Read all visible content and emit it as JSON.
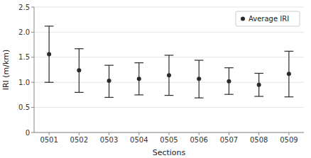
{
  "chart_data": {
    "type": "errorbar",
    "categories": [
      "0501",
      "0502",
      "0503",
      "0504",
      "0505",
      "0506",
      "0507",
      "0508",
      "0509"
    ],
    "series": [
      {
        "name": "Average IRI",
        "color": "#2a2a2a",
        "values": [
          1.56,
          1.24,
          1.03,
          1.07,
          1.14,
          1.07,
          1.02,
          0.95,
          1.17
        ],
        "upper": [
          2.12,
          1.67,
          1.34,
          1.39,
          1.54,
          1.44,
          1.29,
          1.18,
          1.62
        ],
        "lower": [
          1.0,
          0.8,
          0.7,
          0.75,
          0.74,
          0.69,
          0.76,
          0.72,
          0.71
        ]
      }
    ],
    "xlabel": "Sections",
    "ylabel": "IRI (m/km)",
    "ylim": [
      0,
      2.5
    ],
    "yticks": [
      0,
      0.5,
      {
        "value": 1,
        "label": "1.0"
      },
      1.5,
      {
        "value": 2,
        "label": "2.0"
      },
      2.5
    ],
    "grid": true,
    "legend": "upper right"
  }
}
